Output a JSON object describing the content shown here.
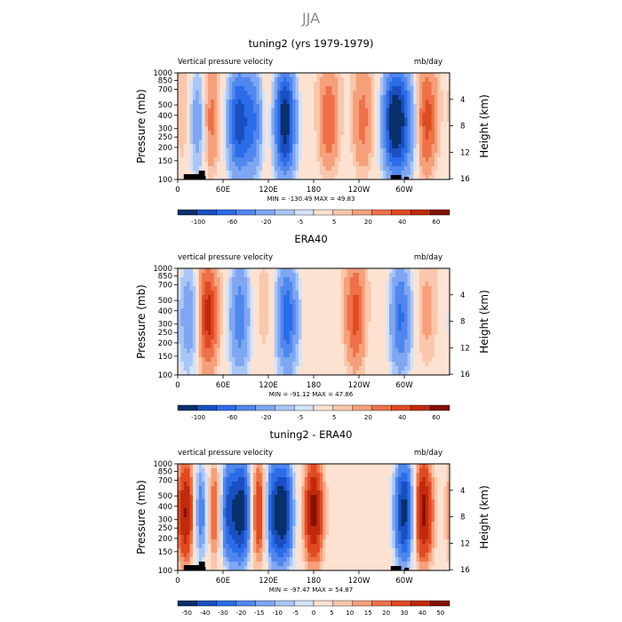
{
  "season_title": "JJA",
  "colors": {
    "palette": [
      "#08306b",
      "#1a4fc0",
      "#2b6ce8",
      "#4f87ee",
      "#7ea6f2",
      "#aac6f6",
      "#d2e3fa",
      "#fde2d2",
      "#fac7ac",
      "#f6a07a",
      "#ee7148",
      "#e04a20",
      "#c02a0c",
      "#850f05"
    ],
    "land_mask": "#000000"
  },
  "panels": [
    {
      "title": "tuning2 (yrs 1979-1979)",
      "variable_label": "Vertical pressure velocity",
      "units_label": "mb/day",
      "y_left_label": "Pressure (mb)",
      "y_right_label": "Height (km)",
      "pressure_ticks": [
        "100",
        "150",
        "200",
        "250",
        "300",
        "400",
        "500",
        "700",
        "850",
        "1000"
      ],
      "height_ticks": [
        "16",
        "12",
        "8",
        "4"
      ],
      "lon_ticks": [
        "0",
        "60E",
        "120E",
        "180",
        "120W",
        "60W"
      ],
      "stats": "MIN = -130.49   MAX =  49.83",
      "colorbar_labels": [
        "-100",
        "-60",
        "-20",
        "-5",
        "5",
        "20",
        "40",
        "60"
      ]
    },
    {
      "title": "ERA40",
      "variable_label": "vertical pressure velocity",
      "units_label": "mb/day",
      "y_left_label": "Pressure (mb)",
      "y_right_label": "Height (km)",
      "pressure_ticks": [
        "100",
        "150",
        "200",
        "250",
        "300",
        "400",
        "500",
        "700",
        "850",
        "1000"
      ],
      "height_ticks": [
        "16",
        "12",
        "8",
        "4"
      ],
      "lon_ticks": [
        "0",
        "60E",
        "120E",
        "180",
        "120W",
        "60W"
      ],
      "stats": "MIN = -91.12   MAX =  47.86",
      "colorbar_labels": [
        "-100",
        "-60",
        "-20",
        "-5",
        "5",
        "20",
        "40",
        "60"
      ]
    },
    {
      "title": "tuning2 - ERA40",
      "variable_label": "vertical pressure velocity",
      "units_label": "mb/day",
      "y_left_label": "Pressure (mb)",
      "y_right_label": "Height (km)",
      "pressure_ticks": [
        "100",
        "150",
        "200",
        "250",
        "300",
        "400",
        "500",
        "700",
        "850",
        "1000"
      ],
      "height_ticks": [
        "16",
        "12",
        "8",
        "4"
      ],
      "lon_ticks": [
        "0",
        "60E",
        "120E",
        "180",
        "120W",
        "60W"
      ],
      "stats": "MIN = -97.47   MAX =  54.87",
      "colorbar_labels": [
        "-50",
        "-40",
        "-30",
        "-20",
        "-15",
        "-10",
        "-5",
        "0",
        "5",
        "10",
        "15",
        "20",
        "30",
        "40",
        "50"
      ]
    }
  ],
  "chart_data": [
    {
      "type": "heatmap",
      "title": "tuning2 (yrs 1979-1979)",
      "xlabel": "",
      "ylabel": "Pressure (mb)",
      "y2label": "Height (km)",
      "units": "mb/day",
      "xlim_lon_deg": [
        0,
        360
      ],
      "ylim_mb": [
        1000,
        100
      ],
      "min": -130.49,
      "max": 49.83,
      "features": [
        {
          "lon": 12,
          "kind": "descent",
          "value": 10
        },
        {
          "lon": 28,
          "kind": "ascent",
          "value": -40
        },
        {
          "lon": 40,
          "kind": "descent",
          "value": 30
        },
        {
          "lon": 80,
          "kind": "ascent",
          "value": -80
        },
        {
          "lon": 100,
          "kind": "ascent",
          "value": -60
        },
        {
          "lon": 112,
          "kind": "descent",
          "value": 10
        },
        {
          "lon": 142,
          "kind": "ascent",
          "value": -110
        },
        {
          "lon": 200,
          "kind": "descent",
          "value": 25
        },
        {
          "lon": 245,
          "kind": "descent",
          "value": 20
        },
        {
          "lon": 285,
          "kind": "ascent",
          "value": -100
        },
        {
          "lon": 300,
          "kind": "ascent",
          "value": -60
        },
        {
          "lon": 330,
          "kind": "descent",
          "value": 30
        }
      ]
    },
    {
      "type": "heatmap",
      "title": "ERA40",
      "xlabel": "",
      "ylabel": "Pressure (mb)",
      "y2label": "Height (km)",
      "units": "mb/day",
      "xlim_lon_deg": [
        0,
        360
      ],
      "ylim_mb": [
        1000,
        100
      ],
      "min": -91.12,
      "max": 47.86,
      "features": [
        {
          "lon": 14,
          "kind": "ascent",
          "value": -30
        },
        {
          "lon": 40,
          "kind": "descent",
          "value": 40
        },
        {
          "lon": 82,
          "kind": "ascent",
          "value": -50
        },
        {
          "lon": 115,
          "kind": "descent",
          "value": 5
        },
        {
          "lon": 145,
          "kind": "ascent",
          "value": -70
        },
        {
          "lon": 235,
          "kind": "descent",
          "value": 30
        },
        {
          "lon": 295,
          "kind": "ascent",
          "value": -60
        },
        {
          "lon": 330,
          "kind": "descent",
          "value": 10
        }
      ]
    },
    {
      "type": "heatmap",
      "title": "tuning2 - ERA40",
      "xlabel": "",
      "ylabel": "Pressure (mb)",
      "y2label": "Height (km)",
      "units": "mb/day",
      "xlim_lon_deg": [
        0,
        360
      ],
      "ylim_mb": [
        1000,
        100
      ],
      "min": -97.47,
      "max": 54.87,
      "features": [
        {
          "lon": 12,
          "kind": "descent",
          "value": 40
        },
        {
          "lon": 30,
          "kind": "ascent",
          "value": -30
        },
        {
          "lon": 50,
          "kind": "descent",
          "value": 30
        },
        {
          "lon": 65,
          "kind": "ascent",
          "value": -40
        },
        {
          "lon": 85,
          "kind": "ascent",
          "value": -50
        },
        {
          "lon": 110,
          "kind": "descent",
          "value": 40
        },
        {
          "lon": 122,
          "kind": "ascent",
          "value": -40
        },
        {
          "lon": 140,
          "kind": "ascent",
          "value": -50
        },
        {
          "lon": 180,
          "kind": "descent",
          "value": 40
        },
        {
          "lon": 300,
          "kind": "ascent",
          "value": -50
        },
        {
          "lon": 325,
          "kind": "descent",
          "value": 40
        }
      ]
    }
  ]
}
